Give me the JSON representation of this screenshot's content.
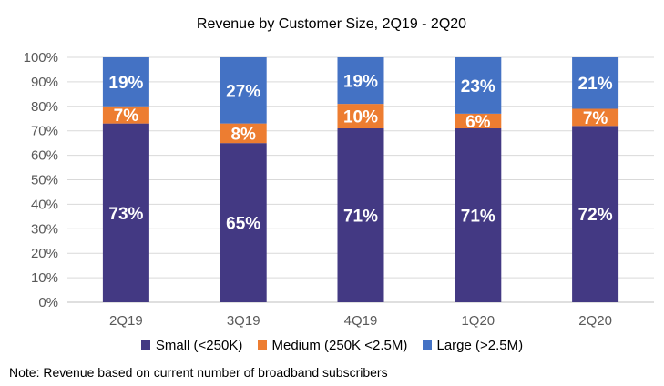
{
  "chart_data": {
    "type": "bar",
    "stacked": true,
    "title": "Revenue by Customer Size, 2Q19 - 2Q20",
    "categories": [
      "2Q19",
      "3Q19",
      "4Q19",
      "1Q20",
      "2Q20"
    ],
    "series": [
      {
        "name": "Small (<250K)",
        "color": "#433983",
        "values": [
          73,
          65,
          71,
          71,
          72
        ],
        "labels": [
          "73%",
          "65%",
          "71%",
          "71%",
          "72%"
        ]
      },
      {
        "name": "Medium (250K <2.5M)",
        "color": "#ED7D31",
        "values": [
          7,
          8,
          10,
          6,
          7
        ],
        "labels": [
          "7%",
          "8%",
          "10%",
          "6%",
          "7%"
        ]
      },
      {
        "name": "Large (>2.5M)",
        "color": "#4472C4",
        "values": [
          19,
          27,
          19,
          23,
          21
        ],
        "labels": [
          "19%",
          "27%",
          "19%",
          "23%",
          "21%"
        ]
      }
    ],
    "ylim": [
      0,
      100
    ],
    "yticks": [
      "0%",
      "10%",
      "20%",
      "30%",
      "40%",
      "50%",
      "60%",
      "70%",
      "80%",
      "90%",
      "100%"
    ],
    "grid": true,
    "legend": "bottom"
  },
  "note": "Note: Revenue  based on current number of  broadband subscribers"
}
